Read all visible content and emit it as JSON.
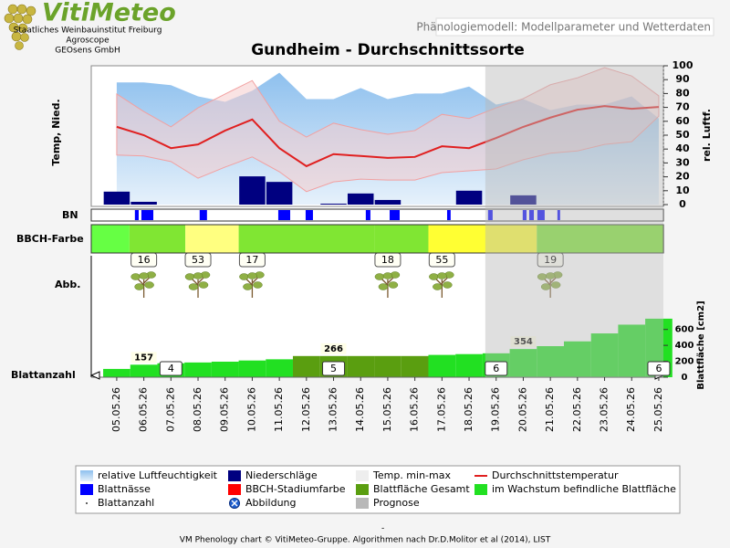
{
  "header": {
    "logo": "VitiMeteo",
    "org": [
      "Staatliches Weinbauinstitut Freiburg",
      "Agroscope",
      "GEOsens GmbH"
    ],
    "tab": "Phänologiemodell: Modellparameter und Wetterdaten"
  },
  "footer": {
    "separator": "-",
    "text": "VM Phenology chart © VitiMeteo-Gruppe. Algorithmen nach Dr.D.Molitor et al (2014), LIST"
  },
  "chart_data": {
    "type": "phenology",
    "title": "Gundheim - Durchschnittssorte",
    "ylabel": "Temp, Nied.",
    "y2label": "rel. Luftf.",
    "y3label": "Blattfläche [cm2]",
    "categories": [
      "05.05.26",
      "06.05.26",
      "07.05.26",
      "08.05.26",
      "09.05.26",
      "10.05.26",
      "11.05.26",
      "12.05.26",
      "13.05.26",
      "14.05.26",
      "15.05.26",
      "16.05.26",
      "17.05.26",
      "18.05.26",
      "19.05.26",
      "20.05.26",
      "21.05.26",
      "22.05.26",
      "23.05.26",
      "24.05.26",
      "25.05.26"
    ],
    "xlim": [
      -0.94,
      20.17
    ],
    "ylim": [
      0,
      30
    ],
    "y2lim": [
      0,
      100
    ],
    "y2ticks": [
      0,
      10,
      20,
      30,
      40,
      50,
      60,
      70,
      80,
      90,
      100
    ],
    "y3lim": [
      0,
      780
    ],
    "y3ticks": [
      0,
      200,
      400,
      600
    ],
    "series": [
      {
        "name": "relative Luftfeuchtigkeit",
        "kind": "area",
        "axis": "y2",
        "color": "#a9d0f2",
        "values": [
          88,
          88,
          86,
          78,
          74,
          82,
          95,
          76,
          76,
          84,
          76,
          80,
          80,
          85,
          72,
          76,
          68,
          72,
          72,
          78,
          62
        ]
      },
      {
        "name": "Niederschläge",
        "kind": "bar",
        "color": "#000080",
        "values": [
          2.8,
          0.6,
          0,
          0,
          0,
          6.1,
          4.9,
          0,
          0.2,
          2.4,
          1.0,
          0,
          0,
          3.0,
          0,
          2.0,
          0,
          0,
          0,
          0,
          0
        ]
      },
      {
        "name": "Temp. min-max",
        "kind": "band",
        "color": "#f6cccc",
        "max": [
          23.9,
          20.1,
          16.8,
          20.9,
          23.9,
          26.8,
          18.0,
          14.6,
          17.6,
          16.2,
          15.2,
          16.0,
          19.5,
          18.6,
          20.9,
          22.9,
          25.9,
          27.4,
          29.6,
          27.8,
          23.5
        ],
        "min": [
          10.7,
          10.5,
          9.3,
          5.7,
          8.1,
          10.3,
          7.1,
          2.8,
          4.9,
          5.5,
          5.3,
          5.3,
          6.9,
          7.3,
          7.7,
          9.7,
          11.1,
          11.6,
          13.0,
          13.6,
          19.1
        ]
      },
      {
        "name": "Durchschnittstemperatur",
        "kind": "line",
        "color": "#e02020",
        "values": [
          16.8,
          15.0,
          12.2,
          13.0,
          16.0,
          18.4,
          12.2,
          8.3,
          10.9,
          10.5,
          10.1,
          10.3,
          12.6,
          12.2,
          14.4,
          16.8,
          18.8,
          20.5,
          21.3,
          20.7,
          21.1
        ]
      }
    ],
    "leaf_wetness": {
      "label": "BN",
      "name": "Blattnässe",
      "color": "#0000ff",
      "periods": [
        [
          0.67,
          0.81
        ],
        [
          0.91,
          1.35
        ],
        [
          3.06,
          3.33
        ],
        [
          5.96,
          6.4
        ],
        [
          6.97,
          7.24
        ],
        [
          9.19,
          9.36
        ],
        [
          10.07,
          10.44
        ],
        [
          12.19,
          12.32
        ],
        [
          13.7,
          13.87
        ],
        [
          14.98,
          15.12
        ],
        [
          15.22,
          15.39
        ],
        [
          15.52,
          15.79
        ],
        [
          16.26,
          16.36
        ]
      ]
    },
    "bbch": {
      "label": "BBCH-Farbe",
      "name": "BBCH-Stadiumfarbe",
      "color": "#ff0000",
      "stages": [
        {
          "stage": null,
          "start": -0.94,
          "color": "#66ff44"
        },
        {
          "stage": 16,
          "at": 1,
          "start": 0.47,
          "color": "#80e633"
        },
        {
          "stage": 53,
          "at": 3,
          "start": 2.53,
          "color": "#ffff80"
        },
        {
          "stage": 17,
          "at": 5,
          "start": 4.5,
          "color": "#80e633"
        },
        {
          "stage": 18,
          "at": 10,
          "start": 9.5,
          "color": "#80e633"
        },
        {
          "stage": 55,
          "at": 12,
          "start": 11.5,
          "color": "#ffff33"
        },
        {
          "stage": 19,
          "at": 16,
          "start": 15.5,
          "color": "#80e633"
        }
      ]
    },
    "images": {
      "label": "Abb.",
      "name": "Abbildung",
      "color": "#1e5fd0"
    },
    "leaf_count": {
      "label": "Blattanzahl",
      "name": "Blattanzahl",
      "x": [
        2,
        8,
        14,
        20
      ],
      "values": [
        4,
        5,
        6,
        6
      ]
    },
    "leaf_area": [
      {
        "name": "Blattfläche Gesamt",
        "color": "#5a9e10",
        "values": [
          null,
          null,
          null,
          null,
          null,
          null,
          null,
          266,
          266,
          266,
          266,
          266,
          null,
          null,
          null,
          null,
          null,
          null,
          null,
          null,
          null
        ]
      },
      {
        "name": "im Wachstum befindliche Blattfläche",
        "color": "#22e022",
        "values": [
          104,
          157,
          175,
          185,
          195,
          210,
          225,
          null,
          null,
          null,
          null,
          null,
          280,
          290,
          300,
          354,
          390,
          450,
          550,
          660,
          735
        ]
      }
    ],
    "annotations": [
      {
        "x": 1,
        "value": 157
      },
      {
        "x": 8,
        "value": 266
      },
      {
        "x": 15,
        "value": 354
      }
    ],
    "prognosis": {
      "name": "Prognose",
      "start": 13.6,
      "color": "#b8b8b8"
    }
  }
}
